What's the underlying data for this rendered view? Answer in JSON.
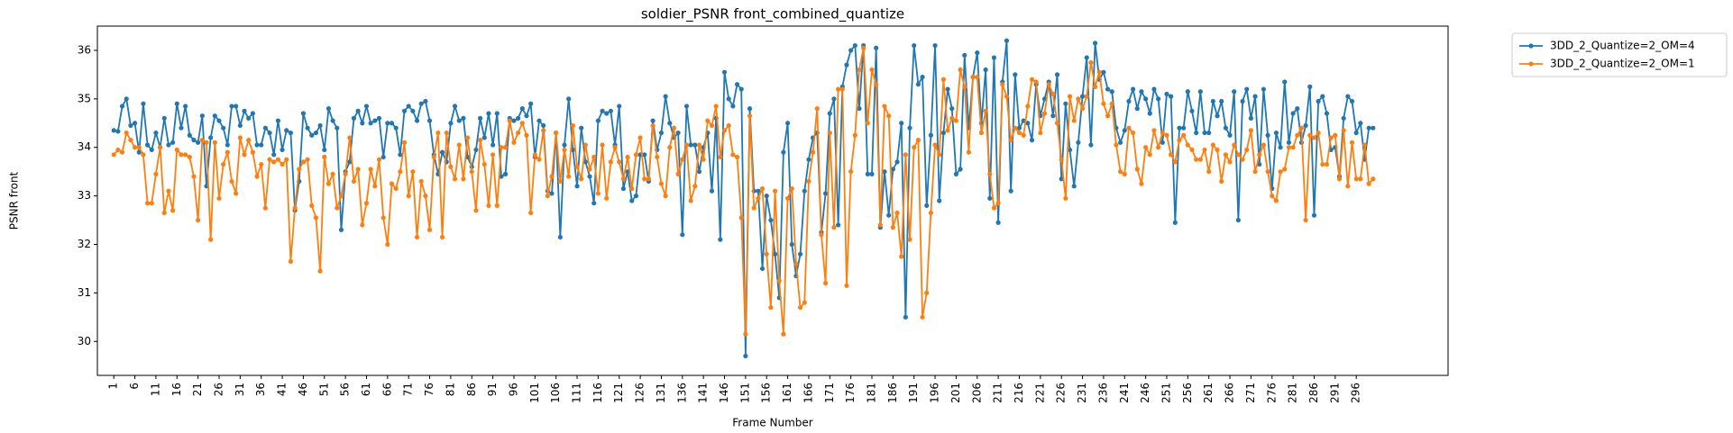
{
  "chart_data": {
    "type": "line",
    "title": "soldier_PSNR front_combined_quantize",
    "x_label": "Frame Number",
    "y_label": "PSNR front",
    "xlim": [
      -2.9,
      317.8
    ],
    "ylim": [
      29.3,
      36.5
    ],
    "yticks": [
      30,
      31,
      32,
      33,
      34,
      35,
      36
    ],
    "xticks": [
      1,
      6,
      11,
      16,
      21,
      26,
      31,
      36,
      41,
      46,
      51,
      56,
      61,
      66,
      71,
      76,
      81,
      86,
      91,
      96,
      101,
      106,
      111,
      116,
      121,
      126,
      131,
      136,
      141,
      146,
      151,
      156,
      161,
      166,
      171,
      176,
      181,
      186,
      191,
      196,
      201,
      206,
      211,
      216,
      221,
      226,
      231,
      236,
      241,
      246,
      251,
      256,
      261,
      266,
      271,
      276,
      281,
      286,
      291,
      296
    ],
    "legend": "outside-upper-right",
    "grid": false,
    "x": [
      1,
      2,
      3,
      4,
      5,
      6,
      7,
      8,
      9,
      10,
      11,
      12,
      13,
      14,
      15,
      16,
      17,
      18,
      19,
      20,
      21,
      22,
      23,
      24,
      25,
      26,
      27,
      28,
      29,
      30,
      31,
      32,
      33,
      34,
      35,
      36,
      37,
      38,
      39,
      40,
      41,
      42,
      43,
      44,
      45,
      46,
      47,
      48,
      49,
      50,
      51,
      52,
      53,
      54,
      55,
      56,
      57,
      58,
      59,
      60,
      61,
      62,
      63,
      64,
      65,
      66,
      67,
      68,
      69,
      70,
      71,
      72,
      73,
      74,
      75,
      76,
      77,
      78,
      79,
      80,
      81,
      82,
      83,
      84,
      85,
      86,
      87,
      88,
      89,
      90,
      91,
      92,
      93,
      94,
      95,
      96,
      97,
      98,
      99,
      100,
      101,
      102,
      103,
      104,
      105,
      106,
      107,
      108,
      109,
      110,
      111,
      112,
      113,
      114,
      115,
      116,
      117,
      118,
      119,
      120,
      121,
      122,
      123,
      124,
      125,
      126,
      127,
      128,
      129,
      130,
      131,
      132,
      133,
      134,
      135,
      136,
      137,
      138,
      139,
      140,
      141,
      142,
      143,
      144,
      145,
      146,
      147,
      148,
      149,
      150,
      151,
      152,
      153,
      154,
      155,
      156,
      157,
      158,
      159,
      160,
      161,
      162,
      163,
      164,
      165,
      166,
      167,
      168,
      169,
      170,
      171,
      172,
      173,
      174,
      175,
      176,
      177,
      178,
      179,
      180,
      181,
      182,
      183,
      184,
      185,
      186,
      187,
      188,
      189,
      190,
      191,
      192,
      193,
      194,
      195,
      196,
      197,
      198,
      199,
      200,
      201,
      202,
      203,
      204,
      205,
      206,
      207,
      208,
      209,
      210,
      211,
      212,
      213,
      214,
      215,
      216,
      217,
      218,
      219,
      220,
      221,
      222,
      223,
      224,
      225,
      226,
      227,
      228,
      229,
      230,
      231,
      232,
      233,
      234,
      235,
      236,
      237,
      238,
      239,
      240,
      241,
      242,
      243,
      244,
      245,
      246,
      247,
      248,
      249,
      250,
      251,
      252,
      253,
      254,
      255,
      256,
      257,
      258,
      259,
      260,
      261,
      262,
      263,
      264,
      265,
      266,
      267,
      268,
      269,
      270,
      271,
      272,
      273,
      274,
      275,
      276,
      277,
      278,
      279,
      280,
      281,
      282,
      283,
      284,
      285,
      286,
      287,
      288,
      289,
      290,
      291,
      292,
      293,
      294,
      295,
      296,
      297,
      298,
      299,
      300
    ],
    "series": [
      {
        "name": "3DD_2_Quantize=2_OM=4",
        "color": "#1f77b4",
        "values": [
          34.35,
          34.33,
          34.85,
          35.0,
          34.45,
          34.5,
          33.9,
          34.9,
          34.05,
          33.95,
          34.3,
          34.0,
          34.6,
          34.05,
          34.1,
          34.9,
          34.4,
          34.85,
          34.25,
          34.15,
          34.1,
          34.65,
          33.2,
          34.2,
          34.65,
          34.55,
          34.4,
          34.05,
          34.85,
          34.85,
          34.45,
          34.75,
          34.6,
          34.7,
          34.05,
          34.05,
          34.4,
          34.3,
          33.85,
          34.55,
          33.95,
          34.35,
          34.3,
          32.7,
          33.3,
          34.7,
          34.4,
          34.25,
          34.3,
          34.45,
          33.95,
          34.8,
          34.55,
          34.4,
          32.3,
          33.5,
          33.7,
          34.6,
          34.75,
          34.5,
          34.85,
          34.5,
          34.55,
          34.6,
          33.8,
          34.5,
          34.5,
          34.4,
          33.85,
          34.75,
          34.85,
          34.75,
          34.55,
          34.9,
          34.95,
          34.55,
          33.85,
          33.45,
          33.9,
          33.7,
          34.5,
          34.85,
          34.55,
          34.6,
          33.8,
          33.6,
          33.95,
          34.6,
          34.2,
          34.7,
          34.05,
          34.7,
          33.4,
          33.45,
          34.6,
          34.55,
          34.6,
          34.8,
          34.65,
          34.9,
          33.8,
          34.55,
          34.45,
          33.1,
          33.05,
          34.3,
          32.15,
          34.05,
          35.0,
          33.95,
          33.2,
          34.4,
          33.7,
          33.4,
          32.85,
          34.55,
          34.75,
          34.7,
          34.75,
          34.05,
          34.85,
          33.15,
          33.5,
          32.9,
          33.0,
          33.85,
          33.85,
          33.3,
          34.55,
          33.95,
          34.3,
          35.05,
          34.5,
          34.2,
          34.3,
          32.2,
          34.85,
          34.05,
          34.05,
          33.5,
          34.0,
          34.3,
          33.1,
          34.6,
          32.1,
          35.55,
          35.0,
          34.85,
          35.3,
          35.2,
          29.7,
          34.8,
          33.1,
          33.1,
          31.5,
          33.0,
          32.5,
          31.8,
          30.9,
          33.9,
          34.5,
          32.0,
          31.35,
          31.8,
          33.1,
          33.75,
          34.2,
          34.3,
          32.25,
          33.05,
          34.7,
          35.0,
          32.4,
          35.25,
          35.7,
          36.0,
          36.1,
          34.8,
          36.1,
          33.45,
          33.45,
          36.05,
          32.35,
          33.5,
          32.6,
          33.55,
          33.7,
          34.5,
          30.5,
          34.4,
          36.1,
          35.3,
          35.45,
          32.8,
          34.25,
          36.1,
          32.9,
          34.3,
          35.2,
          34.8,
          33.45,
          33.55,
          35.9,
          34.4,
          35.45,
          35.95,
          34.5,
          35.6,
          32.95,
          35.85,
          32.45,
          35.35,
          36.2,
          33.1,
          35.5,
          34.4,
          34.55,
          34.5,
          34.15,
          35.3,
          34.65,
          35.0,
          35.35,
          34.65,
          35.5,
          33.35,
          34.9,
          33.95,
          33.2,
          34.1,
          35.05,
          35.85,
          34.05,
          36.15,
          35.4,
          35.55,
          35.2,
          35.15,
          34.4,
          34.1,
          34.35,
          34.95,
          35.2,
          34.8,
          35.15,
          35.0,
          34.7,
          35.2,
          35.0,
          34.1,
          35.1,
          35.05,
          32.45,
          34.4,
          34.4,
          35.15,
          34.75,
          34.3,
          35.15,
          34.3,
          34.3,
          34.95,
          34.65,
          34.95,
          34.4,
          34.25,
          35.15,
          32.5,
          34.95,
          35.2,
          34.6,
          35.05,
          33.65,
          35.2,
          34.25,
          33.15,
          34.3,
          34.0,
          35.35,
          34.1,
          34.7,
          34.8,
          34.1,
          34.45,
          35.25,
          32.6,
          34.95,
          35.05,
          34.7,
          33.95,
          34.0,
          33.4,
          34.6,
          35.05,
          34.95,
          34.3,
          34.5,
          33.75,
          34.4,
          34.4
        ]
      },
      {
        "name": "3DD_2_Quantize=2_OM=1",
        "color": "#ff7f0e",
        "values": [
          33.85,
          33.95,
          33.9,
          34.3,
          34.15,
          34.0,
          34.0,
          33.85,
          32.85,
          32.85,
          33.45,
          34.0,
          32.65,
          33.1,
          32.7,
          33.95,
          33.85,
          33.85,
          33.8,
          33.4,
          32.5,
          34.15,
          34.1,
          32.1,
          34.1,
          32.95,
          33.65,
          33.9,
          33.3,
          33.05,
          34.2,
          33.85,
          34.15,
          33.9,
          33.4,
          33.65,
          32.75,
          33.75,
          33.7,
          33.75,
          33.65,
          33.75,
          31.65,
          32.75,
          33.55,
          33.7,
          33.75,
          32.8,
          32.55,
          31.45,
          33.8,
          33.25,
          33.45,
          32.75,
          33.0,
          33.45,
          34.2,
          33.3,
          33.55,
          32.4,
          32.85,
          33.55,
          33.2,
          33.75,
          32.55,
          32.0,
          33.25,
          33.15,
          33.5,
          34.1,
          33.0,
          33.5,
          32.15,
          33.3,
          33.0,
          32.3,
          33.8,
          34.3,
          32.15,
          34.3,
          33.6,
          33.35,
          34.05,
          33.35,
          34.2,
          33.5,
          32.7,
          34.15,
          33.65,
          32.8,
          33.85,
          32.8,
          34.0,
          34.0,
          34.55,
          34.1,
          34.3,
          34.5,
          34.25,
          32.65,
          33.85,
          33.75,
          34.35,
          33.0,
          33.4,
          34.3,
          33.3,
          33.95,
          33.4,
          34.45,
          33.6,
          33.35,
          34.05,
          33.55,
          33.8,
          33.05,
          34.05,
          32.95,
          33.7,
          34.0,
          33.7,
          33.35,
          33.8,
          33.15,
          33.85,
          34.2,
          33.35,
          33.35,
          34.45,
          33.8,
          33.25,
          33.0,
          34.0,
          34.4,
          33.45,
          33.75,
          34.05,
          32.9,
          33.2,
          34.05,
          33.75,
          34.55,
          34.45,
          34.85,
          33.8,
          34.35,
          34.45,
          33.85,
          33.8,
          32.55,
          30.15,
          34.65,
          32.75,
          32.95,
          33.15,
          31.8,
          30.7,
          33.1,
          31.25,
          30.15,
          32.95,
          33.15,
          31.6,
          30.7,
          30.8,
          33.3,
          33.9,
          34.8,
          32.2,
          31.2,
          34.3,
          32.35,
          35.2,
          35.2,
          31.15,
          33.5,
          34.25,
          35.6,
          36.05,
          34.5,
          35.6,
          35.3,
          32.4,
          34.85,
          34.65,
          32.35,
          32.65,
          31.75,
          33.85,
          32.1,
          34.0,
          34.15,
          30.5,
          31.0,
          32.65,
          34.05,
          33.85,
          35.4,
          34.35,
          34.6,
          34.55,
          35.6,
          35.25,
          33.9,
          35.45,
          35.45,
          34.3,
          34.75,
          33.45,
          32.75,
          32.85,
          35.3,
          35.05,
          34.15,
          34.4,
          34.3,
          34.25,
          34.85,
          35.4,
          35.35,
          34.3,
          34.7,
          35.3,
          35.1,
          34.5,
          33.75,
          32.95,
          35.05,
          34.55,
          35.0,
          34.8,
          35.05,
          35.75,
          35.25,
          35.55,
          34.9,
          34.65,
          34.9,
          34.05,
          33.5,
          33.45,
          34.4,
          34.3,
          33.55,
          33.25,
          34.0,
          33.85,
          34.35,
          34.0,
          34.3,
          34.25,
          33.85,
          33.7,
          34.15,
          34.25,
          34.05,
          33.95,
          33.75,
          33.75,
          33.95,
          33.5,
          34.05,
          33.95,
          33.3,
          33.85,
          33.7,
          34.05,
          33.85,
          33.75,
          33.95,
          34.35,
          33.5,
          33.85,
          34.05,
          33.5,
          33.0,
          32.9,
          33.5,
          33.55,
          34.0,
          34.0,
          34.25,
          34.4,
          32.5,
          34.25,
          34.2,
          34.3,
          33.65,
          33.65,
          34.2,
          34.25,
          33.35,
          34.35,
          33.2,
          34.1,
          33.35,
          33.35,
          34.05,
          33.25,
          33.35
        ]
      }
    ]
  }
}
